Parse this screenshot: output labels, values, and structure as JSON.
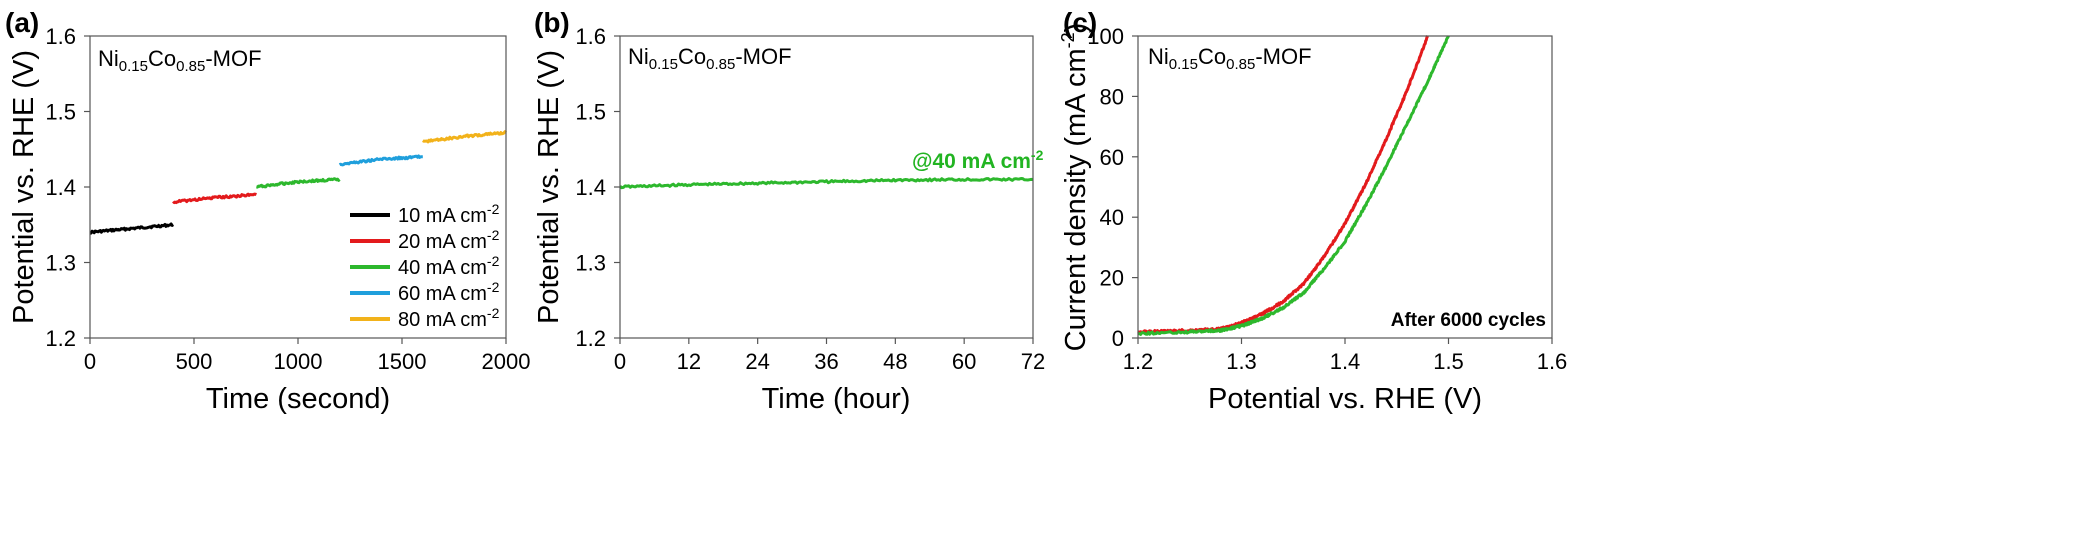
{
  "chart_data": [
    {
      "type": "line",
      "panel_label": "(a)",
      "xlabel": "Time (second)",
      "ylabel": "Potential vs. RHE (V)",
      "xlim": [
        0,
        2000
      ],
      "ylim": [
        1.2,
        1.6
      ],
      "xticks": [
        "0",
        "500",
        "1000",
        "1500",
        "2000"
      ],
      "yticks": [
        "1.2",
        "1.3",
        "1.4",
        "1.5",
        "1.6"
      ],
      "material": {
        "base": "Ni",
        "sub1": "0.15",
        "mid": "Co",
        "sub2": "0.85",
        "tail": "-MOF"
      },
      "legend_position": "bottom-right",
      "series": [
        {
          "name": "10 mA cm",
          "unit_sup": "-2",
          "color": "#000000",
          "x": [
            0,
            200,
            400
          ],
          "y": [
            1.34,
            1.345,
            1.35
          ]
        },
        {
          "name": "20 mA cm",
          "unit_sup": "-2",
          "color": "#e31a1c",
          "x": [
            400,
            600,
            800
          ],
          "y": [
            1.38,
            1.386,
            1.39
          ]
        },
        {
          "name": "40 mA cm",
          "unit_sup": "-2",
          "color": "#2db82d",
          "x": [
            800,
            1000,
            1200
          ],
          "y": [
            1.4,
            1.407,
            1.41
          ]
        },
        {
          "name": "60 mA cm",
          "unit_sup": "-2",
          "color": "#1f9fdc",
          "x": [
            1200,
            1400,
            1600
          ],
          "y": [
            1.43,
            1.437,
            1.44
          ]
        },
        {
          "name": "80 mA cm",
          "unit_sup": "-2",
          "color": "#f2b21a",
          "x": [
            1600,
            1800,
            2000
          ],
          "y": [
            1.46,
            1.467,
            1.472
          ]
        }
      ]
    },
    {
      "type": "line",
      "panel_label": "(b)",
      "xlabel": "Time (hour)",
      "ylabel": "Potential vs. RHE (V)",
      "xlim": [
        0,
        72
      ],
      "ylim": [
        1.2,
        1.6
      ],
      "xticks": [
        "0",
        "12",
        "24",
        "36",
        "48",
        "60",
        "72"
      ],
      "yticks": [
        "1.2",
        "1.3",
        "1.4",
        "1.5",
        "1.6"
      ],
      "material": {
        "base": "Ni",
        "sub1": "0.15",
        "mid": "Co",
        "sub2": "0.85",
        "tail": "-MOF"
      },
      "annotation": {
        "text": "@40 mA cm",
        "sup": "-2"
      },
      "series": [
        {
          "color": "#2db82d",
          "x": [
            0,
            12,
            24,
            36,
            48,
            60,
            72
          ],
          "y": [
            1.4,
            1.403,
            1.405,
            1.407,
            1.409,
            1.41,
            1.41
          ]
        }
      ]
    },
    {
      "type": "line",
      "panel_label": "(c)",
      "xlabel": "Potential vs. RHE (V)",
      "ylabel": "Current density (mA cm",
      "ylabel_sup": "-2",
      "ylabel_tail": ")",
      "xlim": [
        1.2,
        1.6
      ],
      "ylim": [
        0,
        100
      ],
      "xticks": [
        "1.2",
        "1.3",
        "1.4",
        "1.5",
        "1.6"
      ],
      "yticks": [
        "0",
        "20",
        "40",
        "60",
        "80",
        "100"
      ],
      "material": {
        "base": "Ni",
        "sub1": "0.15",
        "mid": "Co",
        "sub2": "0.85",
        "tail": "-MOF"
      },
      "annotation": {
        "text": "After 6000 cycles"
      },
      "series": [
        {
          "color": "#e31a1c",
          "x": [
            1.2,
            1.25,
            1.28,
            1.3,
            1.32,
            1.34,
            1.36,
            1.38,
            1.4,
            1.42,
            1.44,
            1.46,
            1.48
          ],
          "y": [
            2,
            2.5,
            3,
            5,
            8,
            12,
            18,
            27,
            38,
            51,
            66,
            82,
            100
          ]
        },
        {
          "color": "#2db82d",
          "x": [
            1.2,
            1.25,
            1.28,
            1.3,
            1.32,
            1.34,
            1.36,
            1.38,
            1.4,
            1.42,
            1.44,
            1.46,
            1.48,
            1.5
          ],
          "y": [
            1.5,
            2,
            2.5,
            4,
            6.5,
            10,
            15,
            23,
            32,
            44,
            57,
            71,
            85,
            100
          ]
        }
      ]
    }
  ]
}
